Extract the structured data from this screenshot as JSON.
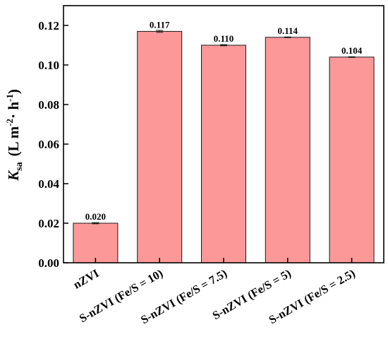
{
  "chart_data": {
    "type": "bar",
    "categories": [
      "nZVI",
      "S-nZVI (Fe/S = 10)",
      "S-nZVI (Fe/S = 7.5)",
      "S-nZVI (Fe/S = 5)",
      "S-nZVI (Fe/S = 2.5)"
    ],
    "values": [
      0.02,
      0.117,
      0.11,
      0.114,
      0.104
    ],
    "data_labels": [
      "0.020",
      "0.117",
      "0.110",
      "0.114",
      "0.104"
    ],
    "errors": [
      0.0003,
      0.0005,
      0.0003,
      0.0002,
      0.0002
    ],
    "yticks": [
      "0.00",
      "0.02",
      "0.04",
      "0.06",
      "0.08",
      "0.10",
      "0.12"
    ],
    "ylim": [
      0,
      0.13
    ],
    "ylabel": {
      "symbol": "K",
      "subscript": "sa",
      "units_open": "(L m",
      "exp1": "-2",
      "units_mid": "· h",
      "exp2": "-1",
      "units_close": ")"
    },
    "xlabel": "",
    "title": "",
    "bar_color": "#fc9898",
    "edge_color": "#1a1a1a",
    "grid": false,
    "legend": "none"
  }
}
